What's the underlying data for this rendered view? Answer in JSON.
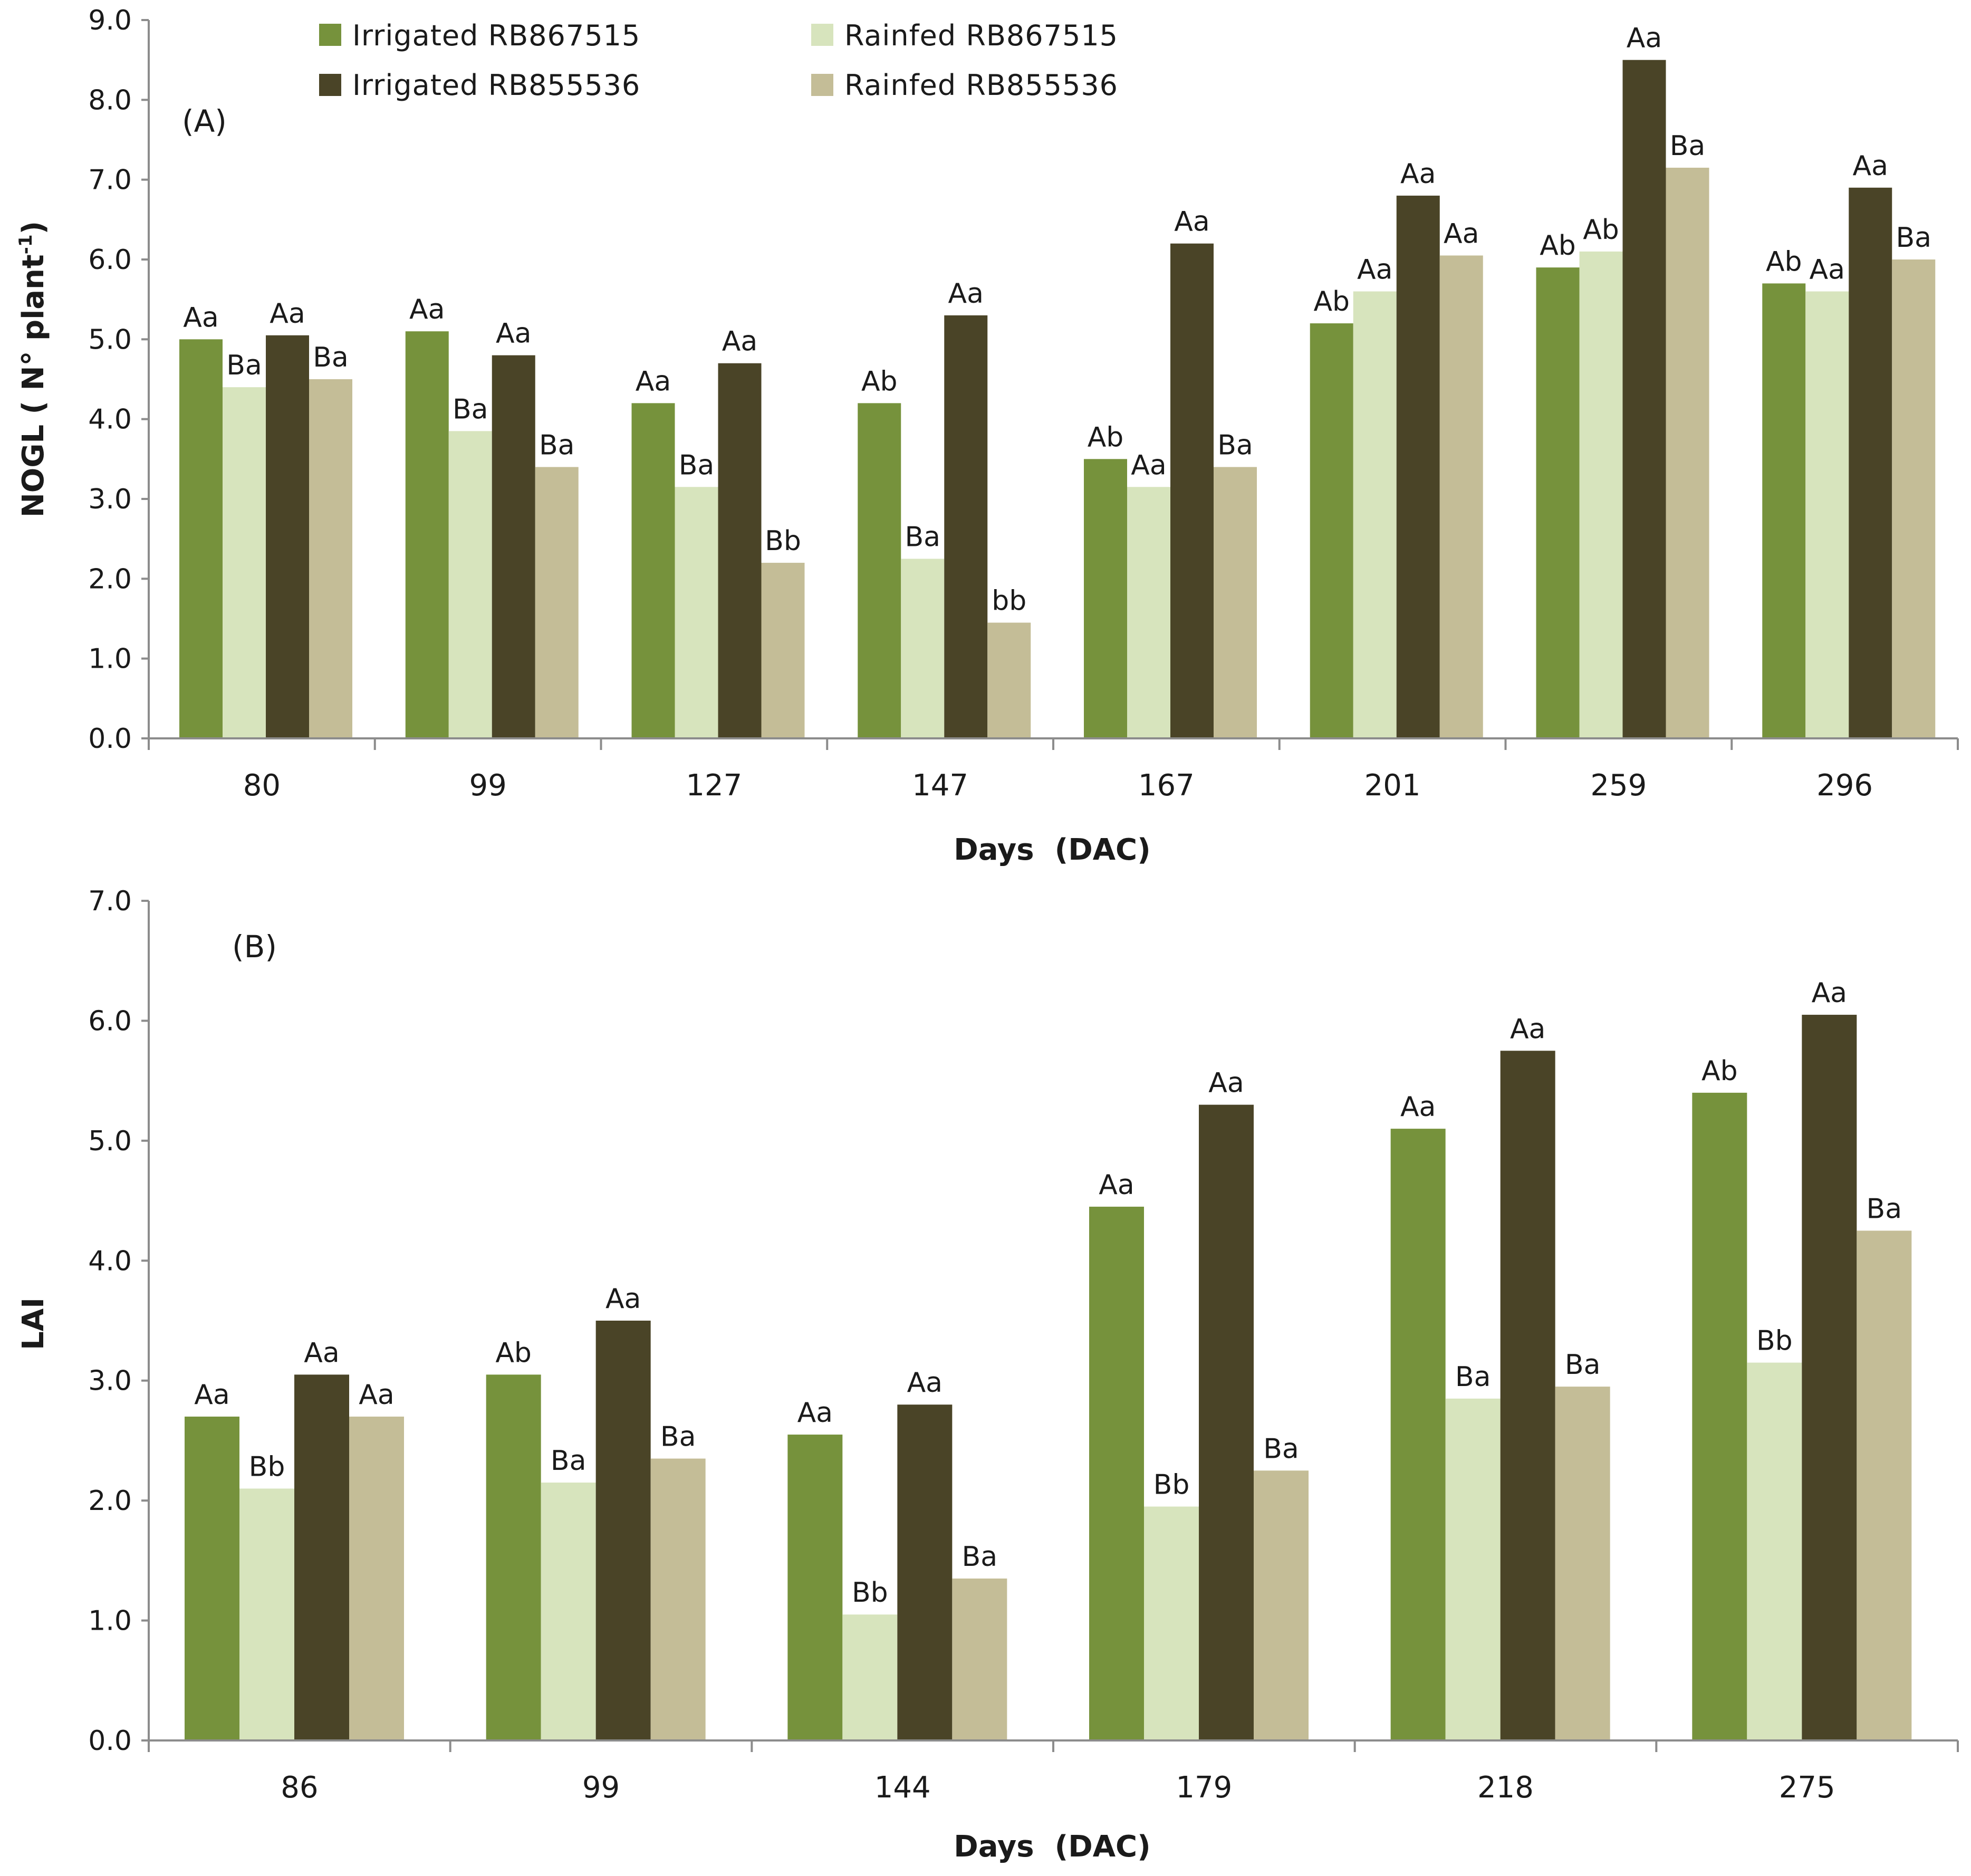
{
  "colors": {
    "irrigated_rb867515": "#76923c",
    "rainfed_rb867515": "#d7e4bd",
    "irrigated_rb855536": "#4a4427",
    "rainfed_rb855536": "#c4bd97"
  },
  "chart_data": [
    {
      "type": "bar",
      "panel": "(A)",
      "title": "",
      "xlabel": "Days  (DAC)",
      "ylabel": "NOGL ( N° plant",
      "ylabel_superscript": "-1",
      "ylabel_close": ")",
      "ylim": [
        0,
        9
      ],
      "ytick_step": 1,
      "yticks": [
        "0.0",
        "1.0",
        "2.0",
        "3.0",
        "4.0",
        "5.0",
        "6.0",
        "7.0",
        "8.0",
        "9.0"
      ],
      "categories": [
        "80",
        "99",
        "127",
        "147",
        "167",
        "201",
        "259",
        "296"
      ],
      "legend": [
        "Irrigated RB867515",
        "Rainfed RB867515",
        "Irrigated RB855536",
        "Rainfed RB855536"
      ],
      "legend_position": "top",
      "series": [
        {
          "name": "Irrigated RB867515",
          "values": [
            5.0,
            5.1,
            4.2,
            4.2,
            3.5,
            5.2,
            5.9,
            5.7
          ],
          "labels": [
            "Aa",
            "Aa",
            "Aa",
            "Ab",
            "Ab",
            "Ab",
            "Ab",
            "Ab"
          ]
        },
        {
          "name": "Rainfed RB867515",
          "values": [
            4.4,
            3.85,
            3.15,
            2.25,
            3.15,
            5.6,
            6.1,
            5.6
          ],
          "labels": [
            "Ba",
            "Ba",
            "Ba",
            "Ba",
            "Aa",
            "Aa",
            "Ab",
            "Aa"
          ]
        },
        {
          "name": "Irrigated RB855536",
          "values": [
            5.05,
            4.8,
            4.7,
            5.3,
            6.2,
            6.8,
            8.5,
            6.9
          ],
          "labels": [
            "Aa",
            "Aa",
            "Aa",
            "Aa",
            "Aa",
            "Aa",
            "Aa",
            "Aa"
          ]
        },
        {
          "name": "Rainfed RB855536",
          "values": [
            4.5,
            3.4,
            2.2,
            1.45,
            3.4,
            6.05,
            7.15,
            6.0
          ],
          "labels": [
            "Ba",
            "Ba",
            "Bb",
            "bb",
            "Ba",
            "Aa",
            "Ba",
            "Ba"
          ]
        }
      ]
    },
    {
      "type": "bar",
      "panel": "(B)",
      "title": "",
      "xlabel": "Days  (DAC)",
      "ylabel": "LAI",
      "ylim": [
        0,
        7
      ],
      "ytick_step": 1,
      "yticks": [
        "0.0",
        "1.0",
        "2.0",
        "3.0",
        "4.0",
        "5.0",
        "6.0",
        "7.0"
      ],
      "categories": [
        "86",
        "99",
        "144",
        "179",
        "218",
        "275"
      ],
      "series": [
        {
          "name": "Irrigated RB867515",
          "values": [
            2.7,
            3.05,
            2.55,
            4.45,
            5.1,
            5.4
          ],
          "labels": [
            "Aa",
            "Ab",
            "Aa",
            "Aa",
            "Aa",
            "Ab"
          ]
        },
        {
          "name": "Rainfed RB867515",
          "values": [
            2.1,
            2.15,
            1.05,
            1.95,
            2.85,
            3.15
          ],
          "labels": [
            "Bb",
            "Ba",
            "Bb",
            "Bb",
            "Ba",
            "Bb"
          ]
        },
        {
          "name": "Irrigated RB855536",
          "values": [
            3.05,
            3.5,
            2.8,
            5.3,
            5.75,
            6.05
          ],
          "labels": [
            "Aa",
            "Aa",
            "Aa",
            "Aa",
            "Aa",
            "Aa"
          ]
        },
        {
          "name": "Rainfed RB855536",
          "values": [
            2.7,
            2.35,
            1.35,
            2.25,
            2.95,
            4.25
          ],
          "labels": [
            "Aa",
            "Ba",
            "Ba",
            "Ba",
            "Ba",
            "Ba"
          ]
        }
      ]
    }
  ]
}
